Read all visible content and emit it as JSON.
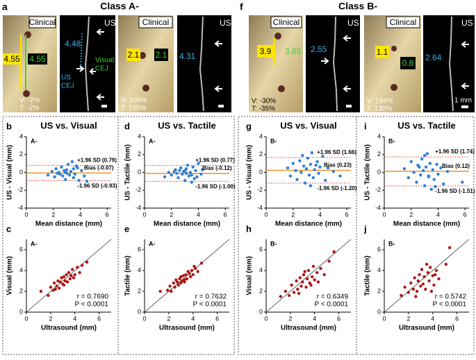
{
  "class_a": {
    "letter": "a",
    "title": "Class A-",
    "images": [
      {
        "heading": "Clinical",
        "measures": [
          "4.55",
          "4.55"
        ],
        "changes": [
          "V: -2%",
          "T: -2%"
        ]
      },
      {
        "heading": "US",
        "measure": "4.48",
        "notes": [
          "Visual",
          "CEJ",
          "US",
          "CEJ"
        ]
      },
      {
        "heading": "Clinical",
        "measures": [
          "2.1",
          "2.1"
        ],
        "changes": [
          "V: 105%",
          "T: 105%"
        ]
      },
      {
        "heading": "US",
        "measure": "4.31"
      }
    ]
  },
  "class_b": {
    "letter": "f",
    "title": "Class B-",
    "images": [
      {
        "heading": "Clinical",
        "measures": [
          "3.9",
          "3.65"
        ],
        "changes": [
          "V: -30%",
          "T: -35%"
        ]
      },
      {
        "heading": "US",
        "measure": "2.55"
      },
      {
        "heading": "Clinical",
        "measures": [
          "1.1",
          "0.8"
        ],
        "changes": [
          "V: 194%",
          "T: 130%"
        ]
      },
      {
        "heading": "US",
        "measure": "2.64",
        "scale": "1 mm"
      }
    ]
  },
  "chart_data": [
    {
      "type": "scatter",
      "label": "b",
      "title": "US vs. Visual",
      "inset": "A-",
      "xlabel": "Mean distance (mm)",
      "ylabel": "US - Visual (mm)",
      "color": "#2f7fd7",
      "x": [
        1.6,
        1.9,
        2.1,
        2.2,
        2.4,
        2.5,
        2.6,
        2.7,
        2.8,
        2.9,
        3.0,
        3.0,
        3.1,
        3.2,
        3.3,
        3.4,
        3.5,
        3.5,
        3.6,
        3.8,
        3.9,
        4.1,
        4.3,
        4.5,
        2.3,
        3.7,
        2.9
      ],
      "y": [
        -0.3,
        0.1,
        -0.5,
        0.4,
        0.0,
        -0.2,
        0.6,
        -0.4,
        0.2,
        -0.8,
        0.3,
        -0.1,
        0.9,
        -0.3,
        0.1,
        1.2,
        -0.6,
        0.4,
        -0.2,
        0.5,
        -0.9,
        0.2,
        -0.4,
        -1.0,
        -0.1,
        0.7,
        0.0
      ],
      "xlim": [
        0,
        6.3
      ],
      "ylim": [
        -4,
        4
      ],
      "xticks": [
        0,
        2,
        4,
        6
      ],
      "yticks": [
        -4,
        -2,
        0,
        2,
        4
      ],
      "reference_lines": [
        {
          "value": 0.79,
          "label": "+1.96 SD (0.79)",
          "color": "#e03030"
        },
        {
          "value": -0.07,
          "label": "Bias (-0.07)",
          "color": "#f09a30"
        },
        {
          "value": -0.93,
          "label": "-1.96 SD (-0.93)",
          "color": "#e03030"
        }
      ]
    },
    {
      "type": "scatter",
      "label": "c",
      "inset": "A-",
      "xlabel": "Ultrasound (mm)",
      "ylabel": "Visual (mm)",
      "color": "#b01515",
      "identity_line": true,
      "x": [
        1.2,
        1.8,
        2.0,
        2.2,
        2.3,
        2.5,
        2.6,
        2.7,
        2.8,
        2.9,
        3.0,
        3.1,
        3.2,
        3.3,
        3.4,
        3.5,
        3.6,
        3.7,
        3.8,
        4.0,
        4.2,
        4.4,
        4.6,
        5.0,
        2.4,
        3.1,
        3.9
      ],
      "y": [
        2.0,
        1.6,
        2.4,
        2.1,
        2.8,
        2.5,
        3.0,
        2.3,
        2.9,
        3.3,
        2.7,
        3.4,
        3.0,
        3.6,
        2.9,
        3.8,
        3.2,
        3.5,
        4.1,
        3.6,
        4.3,
        3.8,
        4.5,
        4.8,
        2.2,
        2.6,
        3.3
      ],
      "xlim": [
        0,
        7
      ],
      "ylim": [
        0,
        7
      ],
      "xticks": [
        0,
        2,
        4,
        6
      ],
      "yticks": [
        0,
        2,
        4,
        6
      ],
      "annotations": [
        "r = 0.7690",
        "P < 0.0001"
      ]
    },
    {
      "type": "scatter",
      "label": "d",
      "title": "US vs. Tactile",
      "inset": "A-",
      "xlabel": "Mean distance (mm)",
      "ylabel": "US - Tactile (mm)",
      "color": "#2f7fd7",
      "x": [
        1.5,
        1.8,
        2.0,
        2.3,
        2.5,
        2.6,
        2.7,
        2.8,
        2.9,
        3.0,
        3.1,
        3.1,
        3.2,
        3.3,
        3.4,
        3.5,
        3.6,
        3.7,
        3.8,
        4.0,
        4.2,
        4.3,
        2.4,
        3.0,
        3.5,
        2.2,
        3.9
      ],
      "y": [
        -0.5,
        0.0,
        -0.3,
        0.3,
        -0.6,
        0.2,
        0.5,
        -0.2,
        0.1,
        -0.9,
        0.4,
        -0.1,
        0.8,
        -0.4,
        0.0,
        -0.3,
        0.6,
        -0.7,
        0.2,
        1.0,
        -0.2,
        0.3,
        -0.1,
        0.2,
        -1.1,
        0.1,
        -0.5
      ],
      "xlim": [
        0,
        6.3
      ],
      "ylim": [
        -4,
        4
      ],
      "xticks": [
        0,
        2,
        4,
        6
      ],
      "yticks": [
        -4,
        -2,
        0,
        2,
        4
      ],
      "reference_lines": [
        {
          "value": 0.77,
          "label": "+1.96 SD (0.77)",
          "color": "#e03030"
        },
        {
          "value": -0.12,
          "label": "Bias (-0.12)",
          "color": "#f09a30"
        },
        {
          "value": -1.0,
          "label": "-1.96 SD (-1.00)",
          "color": "#e03030"
        }
      ]
    },
    {
      "type": "scatter",
      "label": "e",
      "inset": "A-",
      "xlabel": "Ultrasound (mm)",
      "ylabel": "Tactile (mm)",
      "color": "#b01515",
      "identity_line": true,
      "x": [
        1.3,
        1.9,
        2.1,
        2.2,
        2.4,
        2.5,
        2.6,
        2.8,
        2.9,
        3.0,
        3.0,
        3.1,
        3.2,
        3.3,
        3.4,
        3.5,
        3.6,
        3.8,
        3.9,
        4.0,
        4.2,
        4.4,
        4.7,
        2.7,
        3.3,
        3.7,
        4.1
      ],
      "y": [
        2.0,
        2.1,
        2.5,
        2.0,
        2.8,
        2.4,
        3.1,
        2.6,
        3.2,
        2.8,
        3.4,
        3.0,
        3.5,
        2.9,
        3.6,
        3.2,
        3.9,
        3.4,
        4.0,
        3.6,
        4.2,
        3.9,
        4.7,
        2.9,
        3.1,
        3.7,
        4.4
      ],
      "xlim": [
        0,
        7
      ],
      "ylim": [
        0,
        7
      ],
      "xticks": [
        0,
        2,
        4,
        6
      ],
      "yticks": [
        0,
        2,
        4,
        6
      ],
      "annotations": [
        "r = 0.7632",
        "P < 0.0001"
      ]
    },
    {
      "type": "scatter",
      "label": "g",
      "title": "US vs. Visual",
      "inset": "B-",
      "xlabel": "Mean distance (mm)",
      "ylabel": "US - Visual (mm)",
      "color": "#2f7fd7",
      "x": [
        1.6,
        1.8,
        2.0,
        2.2,
        2.3,
        2.5,
        2.6,
        2.8,
        2.9,
        3.0,
        3.1,
        3.2,
        3.3,
        3.4,
        3.5,
        3.6,
        3.8,
        3.9,
        4.0,
        4.2,
        4.4,
        4.6,
        5.0,
        5.5,
        2.7,
        3.3,
        3.7
      ],
      "y": [
        0.5,
        -0.4,
        1.0,
        0.2,
        -0.8,
        1.3,
        0.0,
        0.7,
        -1.2,
        0.4,
        1.6,
        -0.3,
        0.9,
        2.2,
        -0.6,
        0.3,
        1.2,
        -0.1,
        0.6,
        1.8,
        -0.9,
        0.5,
        0.1,
        -0.4,
        1.9,
        -1.5,
        0.8
      ],
      "xlim": [
        0,
        6.3
      ],
      "ylim": [
        -4,
        4
      ],
      "xticks": [
        0,
        2,
        4,
        6
      ],
      "yticks": [
        -4,
        -2,
        0,
        2,
        4
      ],
      "reference_lines": [
        {
          "value": 1.66,
          "label": "+1.96 SD (1.66)",
          "color": "#e03030"
        },
        {
          "value": 0.23,
          "label": "Bias (0.23)",
          "color": "#f09a30"
        },
        {
          "value": -1.2,
          "label": "-1.96 SD (-1.20)",
          "color": "#e03030"
        }
      ]
    },
    {
      "type": "scatter",
      "label": "h",
      "inset": "B-",
      "xlabel": "Ultrasound (mm)",
      "ylabel": "Visual (mm)",
      "color": "#b01515",
      "identity_line": true,
      "x": [
        1.2,
        1.6,
        1.9,
        2.1,
        2.3,
        2.5,
        2.6,
        2.8,
        2.9,
        3.0,
        3.1,
        3.3,
        3.4,
        3.5,
        3.6,
        3.8,
        3.9,
        4.0,
        4.2,
        4.3,
        4.5,
        4.8,
        5.2,
        5.6,
        2.7,
        3.2,
        3.7
      ],
      "y": [
        1.5,
        2.0,
        1.6,
        2.6,
        1.9,
        3.0,
        2.2,
        3.3,
        2.5,
        2.9,
        3.6,
        2.4,
        3.2,
        4.0,
        2.8,
        3.4,
        4.4,
        3.1,
        3.8,
        2.9,
        4.2,
        3.6,
        4.9,
        5.8,
        1.8,
        3.9,
        2.6
      ],
      "xlim": [
        0,
        7
      ],
      "ylim": [
        0,
        7
      ],
      "xticks": [
        0,
        2,
        4,
        6
      ],
      "yticks": [
        0,
        2,
        4,
        6
      ],
      "annotations": [
        "r = 0.6349",
        "P < 0.0001"
      ]
    },
    {
      "type": "scatter",
      "label": "i",
      "title": "US vs. Tactile",
      "inset": "B-",
      "xlabel": "Mean distance (mm)",
      "ylabel": "US - Tactile (mm)",
      "color": "#2f7fd7",
      "x": [
        1.5,
        1.8,
        2.0,
        2.2,
        2.4,
        2.5,
        2.7,
        2.8,
        2.9,
        3.0,
        3.1,
        3.2,
        3.3,
        3.4,
        3.5,
        3.6,
        3.7,
        3.9,
        4.0,
        4.2,
        4.4,
        4.7,
        5.8,
        3.0,
        3.3,
        2.6,
        3.8
      ],
      "y": [
        0.4,
        -0.6,
        1.2,
        0.0,
        -1.1,
        0.8,
        -0.3,
        1.5,
        0.2,
        -1.5,
        0.6,
        2.1,
        -0.4,
        1.0,
        -1.9,
        0.3,
        -0.8,
        0.9,
        -0.2,
        0.5,
        -1.3,
        0.1,
        -1.1,
        1.9,
        -0.5,
        0.6,
        -1.6
      ],
      "xlim": [
        0,
        6.3
      ],
      "ylim": [
        -4,
        4
      ],
      "xticks": [
        0,
        2,
        4,
        6
      ],
      "yticks": [
        -4,
        -2,
        0,
        2,
        4
      ],
      "reference_lines": [
        {
          "value": 1.74,
          "label": "+1.96 SD (1.74)",
          "color": "#e03030"
        },
        {
          "value": 0.12,
          "label": "Bias (0.12)",
          "color": "#f09a30"
        },
        {
          "value": -1.51,
          "label": "-1.96 SD (-1.51)",
          "color": "#e03030"
        }
      ]
    },
    {
      "type": "scatter",
      "label": "j",
      "inset": "B-",
      "xlabel": "Ultrasound (mm)",
      "ylabel": "Tactile (mm)",
      "color": "#b01515",
      "identity_line": true,
      "x": [
        1.4,
        1.7,
        2.0,
        2.2,
        2.4,
        2.5,
        2.7,
        2.8,
        2.9,
        3.0,
        3.1,
        3.2,
        3.3,
        3.4,
        3.6,
        3.7,
        3.8,
        4.0,
        4.1,
        4.3,
        4.5,
        5.1,
        5.4,
        2.6,
        3.5,
        3.9,
        4.2
      ],
      "y": [
        1.6,
        2.4,
        1.9,
        2.8,
        2.2,
        3.3,
        2.0,
        3.0,
        3.6,
        2.5,
        4.1,
        2.7,
        3.4,
        2.2,
        3.8,
        3.0,
        4.3,
        3.5,
        2.6,
        4.0,
        3.2,
        4.6,
        6.2,
        1.5,
        4.6,
        2.0,
        3.6
      ],
      "xlim": [
        0,
        7
      ],
      "ylim": [
        0,
        7
      ],
      "xticks": [
        0,
        2,
        4,
        6
      ],
      "yticks": [
        0,
        2,
        4,
        6
      ],
      "annotations": [
        "r = 0.5742",
        "P < 0.0001"
      ]
    }
  ]
}
